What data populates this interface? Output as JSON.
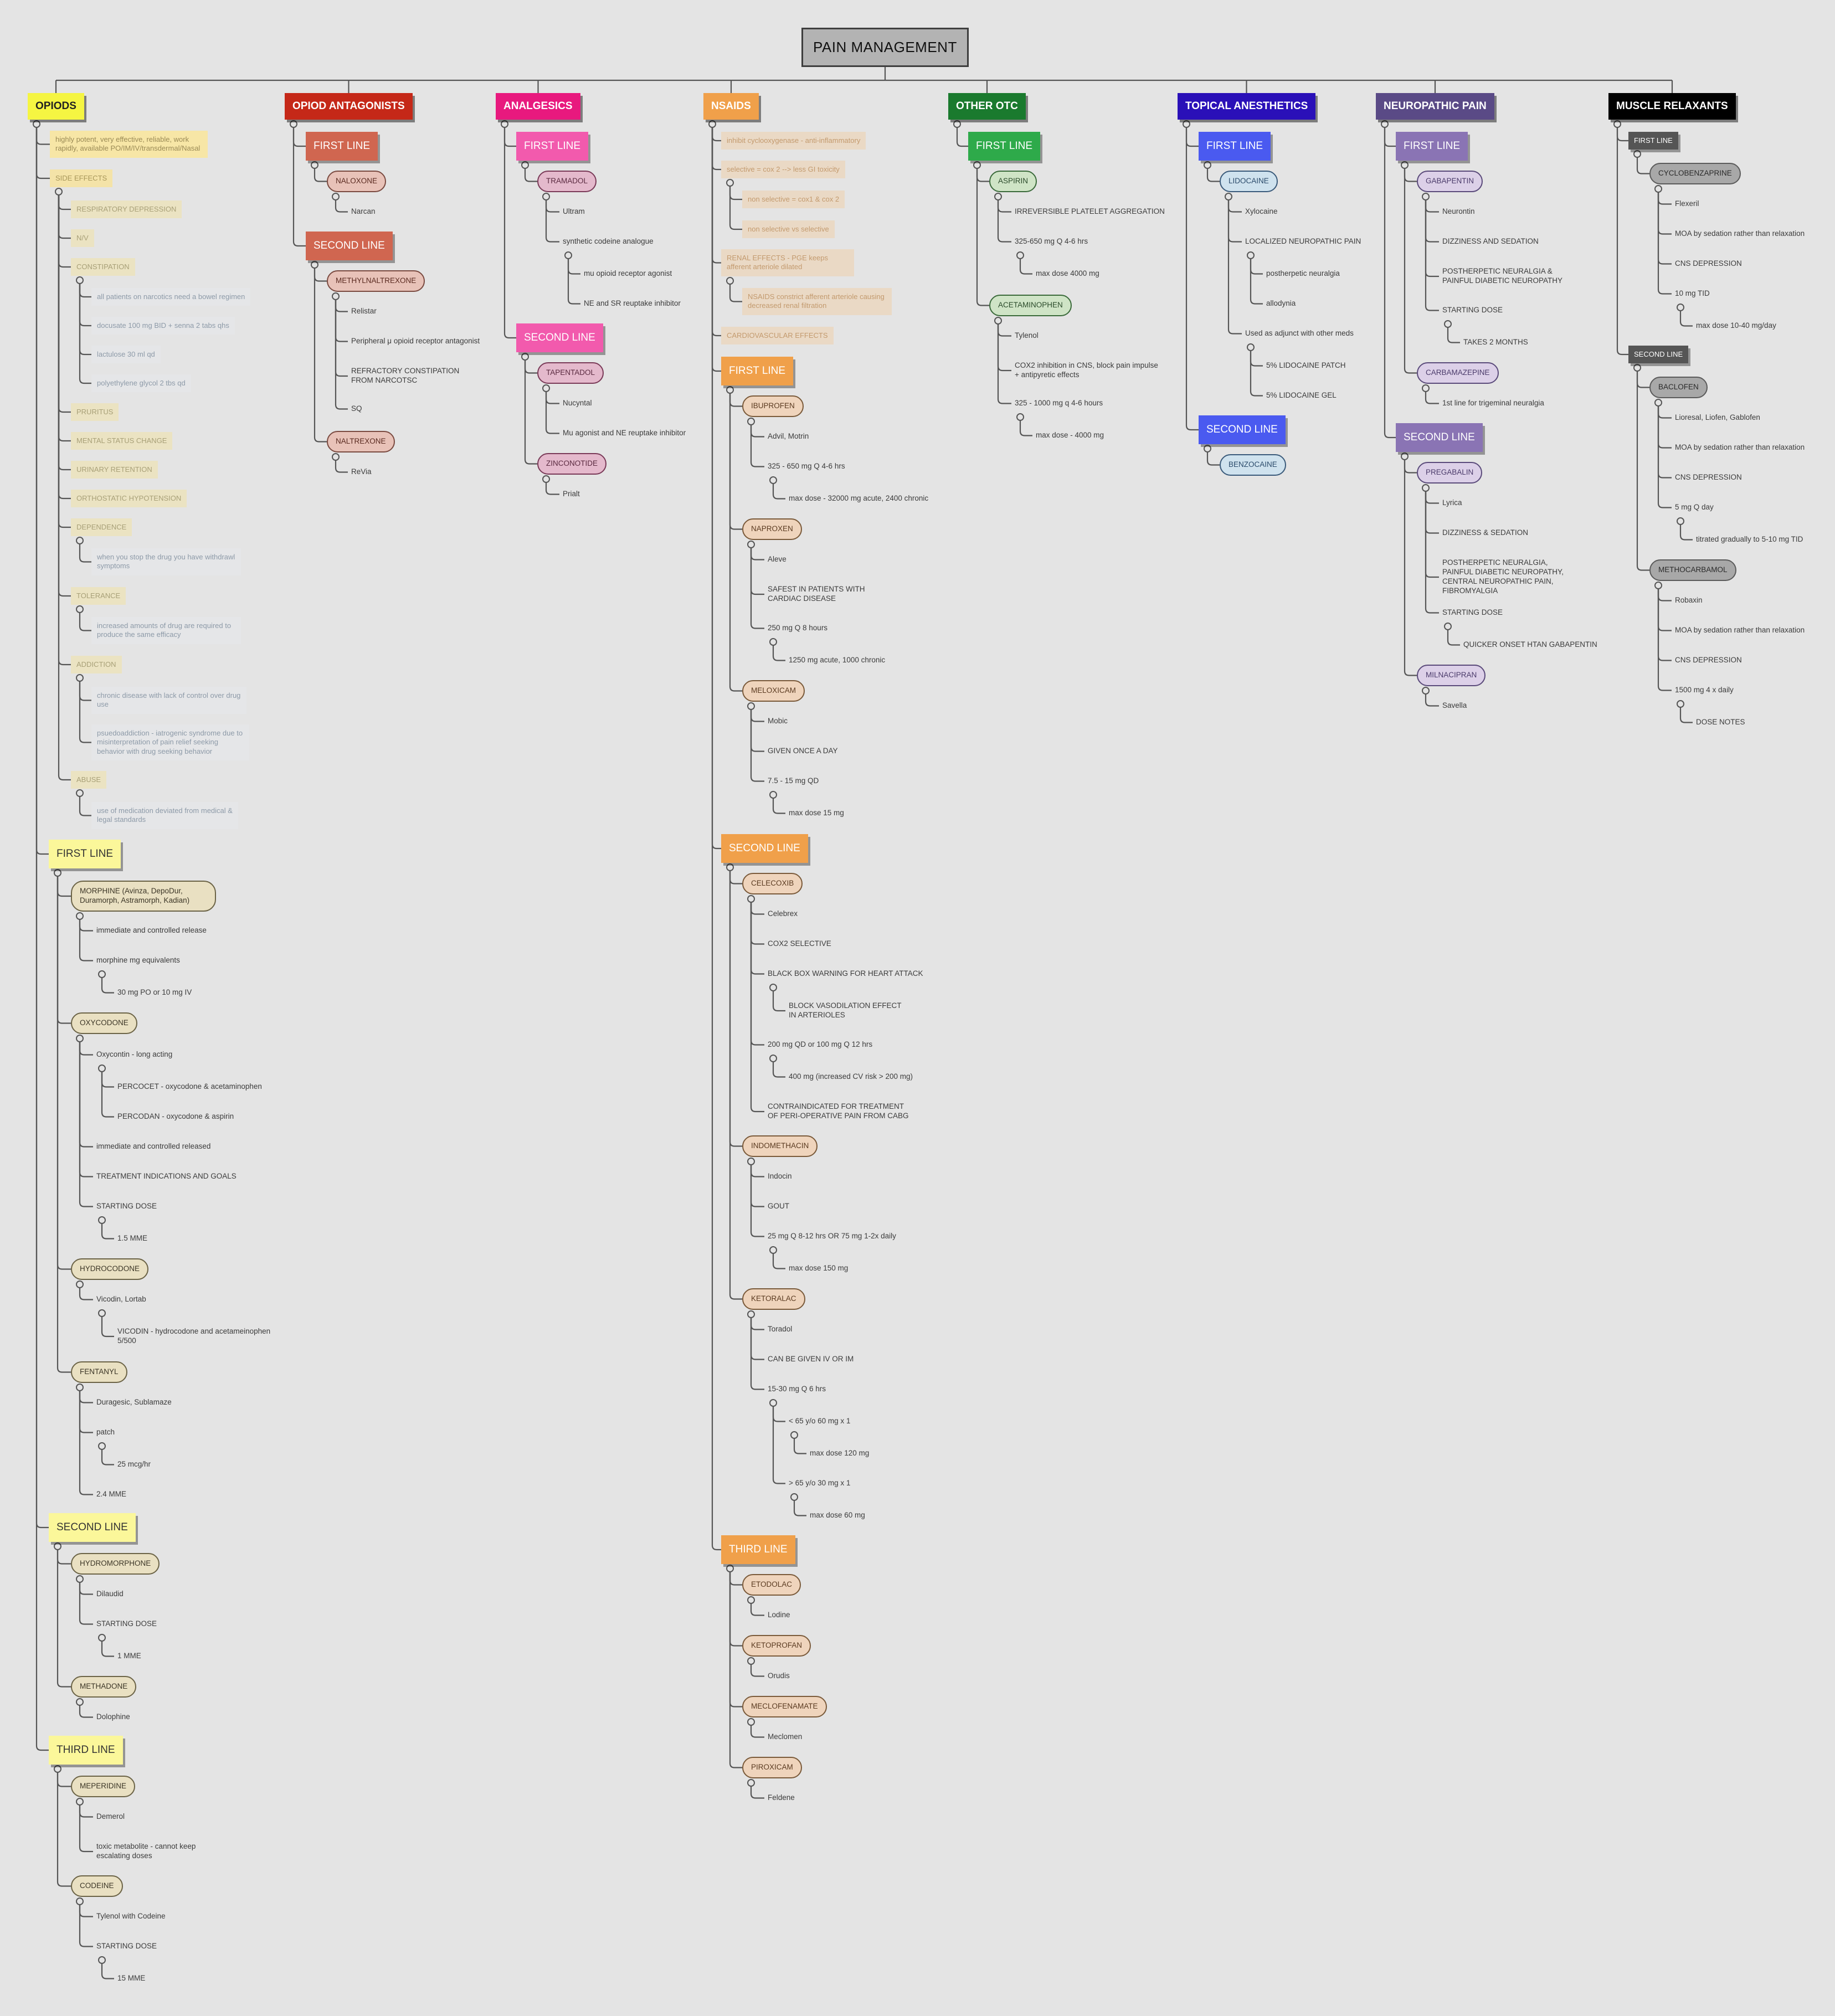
{
  "title": "PAIN MANAGEMENT",
  "colors": {
    "background": "#e4e4e4",
    "lines": "#555555",
    "opioids": "#f5f542",
    "opioid_antagonists": "#c52818",
    "analgesics": "#e8197e",
    "nsaids": "#f0a04a",
    "other_otc": "#1a7a2e",
    "topical_anesthetics": "#2a10b8",
    "neuropathic_pain": "#5a4a86",
    "muscle_relaxants": "#000000"
  },
  "branches": {
    "opioids": {
      "label": "OPIODS",
      "intro": "highly potent, very effective, reliable, work rapidly, available PO/IM/IV/transdermal/Nasal",
      "side_effects": {
        "label": "SIDE EFFECTS",
        "resp_depression": "RESPIRATORY DEPRESSION",
        "nv": "N/V",
        "constipation": {
          "label": "CONSTIPATION",
          "items": [
            "all patients on narcotics need a bowel regimen",
            "docusate 100 mg BID + senna 2 tabs qhs",
            "lactulose 30 ml qd",
            "polyethylene glycol 2 tbs qd"
          ]
        },
        "pruritus": "PRURITUS",
        "mental_status": "MENTAL STATUS CHANGE",
        "urinary_retention": "URINARY RETENTION",
        "orthostatic": "ORTHOSTATIC HYPOTENSION",
        "dependence": {
          "label": "DEPENDENCE",
          "note": "when you stop the drug you have withdrawl symptoms"
        },
        "tolerance": {
          "label": "TOLERANCE",
          "note": "increased amounts of drug are required to produce the same efficacy"
        },
        "addiction": {
          "label": "ADDICTION",
          "note1": "chronic disease with lack of control over drug use",
          "note2": "psuedoaddiction - iatrogenic syndrome due to misinterpretation of pain relief seeking behavior with drug seeking behavior"
        },
        "abuse": {
          "label": "ABUSE",
          "note": "use of medication deviated from medical & legal standards"
        }
      },
      "first_line": {
        "label": "FIRST LINE",
        "morphine": {
          "label": "MORPHINE (Avinza, DepoDur, Duramorph, Astramorph, Kadian)",
          "release": "immediate and controlled release",
          "equiv": "morphine mg equivalents",
          "dose": "30 mg PO or 10 mg IV"
        },
        "oxycodone": {
          "label": "OXYCODONE",
          "oxycontin": "Oxycontin - long acting",
          "percocet": "PERCOCET - oxycodone & acetaminophen",
          "percodan": "PERCODAN - oxycodone & aspirin",
          "release": "immediate and controlled released",
          "indications": "TREATMENT INDICATIONS AND GOALS",
          "start": "STARTING DOSE",
          "mme": "1.5 MME"
        },
        "hydrocodone": {
          "label": "HYDROCODONE",
          "brand": "Vicodin, Lortab",
          "vicodin": "VICODIN - hydrocodone and acetameinophen 5/500"
        },
        "fentanyl": {
          "label": "FENTANYL",
          "brand": "Duragesic, Sublamaze",
          "patch": "patch",
          "dose": "25 mcg/hr",
          "mme": "2.4 MME"
        }
      },
      "second_line": {
        "label": "SECOND LINE",
        "hydromorphone": {
          "label": "HYDROMORPHONE",
          "brand": "Dilaudid",
          "start": "STARTING DOSE",
          "mme": "1 MME"
        },
        "methadone": {
          "label": "METHADONE",
          "brand": "Dolophine"
        }
      },
      "third_line": {
        "label": "THIRD LINE",
        "meperidine": {
          "label": "MEPERIDINE",
          "brand": "Demerol",
          "note": "toxic metabolite - cannot keep escalating doses"
        },
        "codeine": {
          "label": "CODEINE",
          "brand": "Tylenol with Codeine",
          "start": "STARTING DOSE",
          "mme": "15 MME"
        }
      }
    },
    "antagonists": {
      "label": "OPIOD ANTAGONISTS",
      "first_line": {
        "label": "FIRST LINE",
        "naloxone": "NALOXONE",
        "narcan": "Narcan"
      },
      "second_line": {
        "label": "SECOND LINE",
        "methylnaltrexone": {
          "label": "METHYLNALTREXONE",
          "brand": "Relistar",
          "moa": "Peripheral μ opioid receptor antagonist",
          "indication": "REFRACTORY CONSTIPATION FROM NARCOTSC",
          "route": "SQ"
        },
        "naltrexone": {
          "label": "NALTREXONE",
          "brand": "ReVia"
        }
      }
    },
    "analgesics": {
      "label": "ANALGESICS",
      "first_line": {
        "label": "FIRST LINE",
        "tramadol": "TRAMADOL",
        "ultram": "Ultram",
        "analogue": "synthetic codeine analogue",
        "mu": "mu opioid receptor agonist",
        "ne": "NE and SR reuptake inhibitor"
      },
      "second_line": {
        "label": "SECOND LINE",
        "tapentadol": "TAPENTADOL",
        "nucynta": "Nucyntal",
        "mu": "Mu agonist and NE reuptake inhibitor",
        "ziconotide": "ZINCONOTIDE",
        "prialt": "Prialt"
      }
    },
    "nsaids": {
      "label": "NSAIDS",
      "moa": "inhibit cyclooxygenase - anti-inflammatory",
      "selective": "selective = cox 2 --> less GI toxicity",
      "nonselective": "non selective = cox1 & cox 2",
      "nonselective_vs": "non selective vs selective",
      "renal": "RENAL EFFECTS - PGE keeps afferent arteriole dilated",
      "renal2": "NSAIDS constrict afferent arteriole causing decreased renal filtration",
      "cardio": "CARDIOVASCULAR EFFECTS",
      "first_line": {
        "label": "FIRST LINE",
        "ibuprofen": {
          "label": "IBUPROFEN",
          "brand": "Advil, Motrin",
          "dose": "325 - 650 mg Q 4-6 hrs",
          "max": "max dose - 32000 mg acute, 2400 chronic"
        },
        "naproxen": {
          "label": "NAPROXEN",
          "brand": "Aleve",
          "safe": "SAFEST IN PATIENTS WITH CARDIAC DISEASE",
          "dose": "250 mg Q 8 hours",
          "max": "1250 mg acute, 1000 chronic"
        },
        "meloxicam": {
          "label": "MELOXICAM",
          "brand": "Mobic",
          "once": "GIVEN ONCE A DAY",
          "dose": "7.5 - 15 mg QD",
          "max": "max dose 15 mg"
        }
      },
      "second_line": {
        "label": "SECOND LINE",
        "celecoxib": {
          "label": "CELECOXIB",
          "brand": "Celebrex",
          "cox2": "COX2 SELECTIVE",
          "bbw": "BLACK BOX WARNING FOR HEART ATTACK",
          "block": "BLOCK VASODILATION EFFECT IN ARTERIOLES",
          "dose": "200 mg QD or 100 mg Q 12 hrs",
          "max": "400 mg (increased CV risk > 200 mg)",
          "contra": "CONTRAINDICATED FOR TREATMENT OF PERI-OPERATIVE PAIN FROM CABG"
        },
        "indomethacin": {
          "label": "INDOMETHACIN",
          "brand": "Indocin",
          "gout": "GOUT",
          "dose": "25 mg Q 8-12 hrs OR 75 mg 1-2x daily",
          "max": "max dose 150 mg"
        },
        "ketoralac": {
          "label": "KETORALAC",
          "brand": "Toradol",
          "route": "CAN BE GIVEN IV OR IM",
          "dose": "15-30 mg Q 6 hrs",
          "under65": "< 65 y/o 60 mg x 1",
          "max120": "max dose 120 mg",
          "over65": "> 65 y/o 30 mg x 1",
          "max60": "max dose 60 mg"
        }
      },
      "third_line": {
        "label": "THIRD LINE",
        "etodolac": "ETODOLAC",
        "lodine": "Lodine",
        "ketoprofen": "KETOPROFAN",
        "orudis": "Orudis",
        "meclofenamate": "MECLOFENAMATE",
        "meclomen": "Meclomen",
        "piroxicam": "PIROXICAM",
        "feldene": "Feldene"
      }
    },
    "other_otc": {
      "label": "OTHER OTC",
      "first_line": {
        "label": "FIRST LINE",
        "aspirin": {
          "label": "ASPIRIN",
          "irrev": "IRREVERSIBLE PLATELET AGGREGATION",
          "dose": "325-650 mg Q 4-6 hrs",
          "max": "max dose 4000 mg"
        },
        "acetaminophen": {
          "label": "ACETAMINOPHEN",
          "brand": "Tylenol",
          "moa": "COX2 inhibition in CNS, block pain impulse + antipyretic effects",
          "dose": "325 - 1000 mg q 4-6 hours",
          "max": "max dose - 4000 mg"
        }
      }
    },
    "topical": {
      "label": "TOPICAL ANESTHETICS",
      "first_line": {
        "label": "FIRST LINE",
        "lidocaine": "LIDOCAINE",
        "xylocaine": "Xylocaine",
        "local": "LOCALIZED NEUROPATHIC PAIN",
        "posth": "postherpetic neuralgia",
        "allodynia": "allodynia",
        "adjunct": "Used as adjunct with other meds",
        "patch": "5% LIDOCAINE PATCH",
        "gel": "5% LIDOCAINE GEL"
      },
      "second_line": {
        "label": "SECOND LINE",
        "benzocaine": "BENZOCAINE"
      }
    },
    "neuropathic": {
      "label": "NEUROPATHIC PAIN",
      "first_line": {
        "label": "FIRST LINE",
        "gabapentin": {
          "label": "GABAPENTIN",
          "brand": "Neurontin",
          "dizzy": "DIZZINESS AND SEDATION",
          "posth": "POSTHERPETIC NEURALGIA & PAINFUL DIABETIC NEUROPATHY",
          "start": "STARTING DOSE",
          "months": "TAKES 2 MONTHS"
        },
        "carbamazepine": {
          "label": "CARBAMAZEPINE",
          "note": "1st line for trigeminal neuralgia"
        }
      },
      "second_line": {
        "label": "SECOND LINE",
        "pregabalin": {
          "label": "PREGABALIN",
          "brand": "Lyrica",
          "dizzy": "DIZZINESS & SEDATION",
          "posth": "POSTHERPETIC NEURALGIA, PAINFUL DIABETIC NEUROPATHY, CENTRAL NEUROPATHIC PAIN, FIBROMYALGIA",
          "start": "STARTING DOSE",
          "onset": "QUICKER ONSET HTAN GABAPENTIN"
        },
        "milnacipran": {
          "label": "MILNACIPRAN",
          "brand": "Savella"
        }
      }
    },
    "muscle": {
      "label": "MUSCLE RELAXANTS",
      "first_line": {
        "label": "FIRST LINE",
        "cyclo": "CYCLOBENZAPRINE",
        "flexeril": "Flexeril",
        "moa": "MOA by sedation rather than relaxation",
        "cns": "CNS DEPRESSION",
        "dose": "10 mg TID",
        "max": "max dose 10-40 mg/day"
      },
      "second_line": {
        "label": "SECOND LINE",
        "baclofen": {
          "label": "BACLOFEN",
          "brand": "Lioresal, Liofen, Gablofen",
          "moa": "MOA by sedation rather than relaxation",
          "cns": "CNS DEPRESSION",
          "dose": "5 mg Q day",
          "titrate": "titrated gradually to 5-10 mg TID"
        },
        "methocarbamol": {
          "label": "METHOCARBAMOL",
          "brand": "Robaxin",
          "moa": "MOA by sedation rather than relaxation",
          "cns": "CNS DEPRESSION",
          "dose": "1500 mg 4 x daily",
          "notes": "DOSE NOTES"
        }
      }
    }
  }
}
